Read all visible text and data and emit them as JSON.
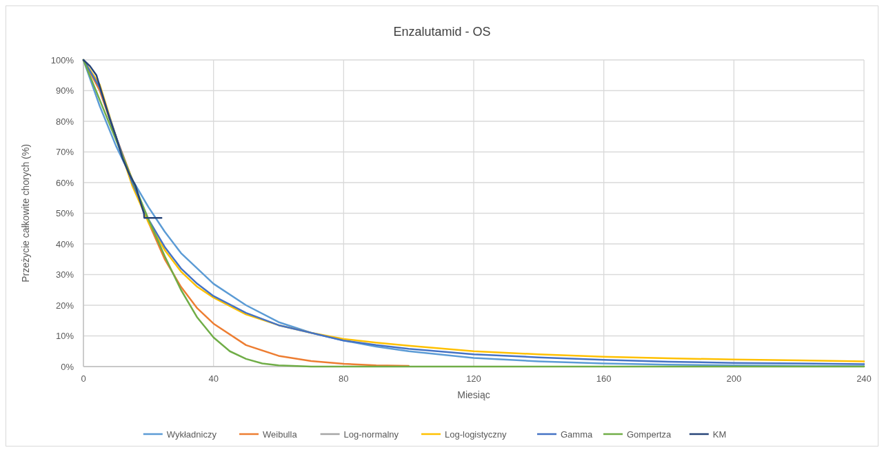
{
  "chart_data": {
    "type": "line",
    "title": "Enzalutamid - OS",
    "xlabel": "Miesiąc",
    "ylabel": "Przeżycie całkowite chorych (%)",
    "x": [
      0,
      5,
      10,
      15,
      20,
      25,
      30,
      35,
      40,
      50,
      60,
      70,
      80,
      90,
      100,
      120,
      140,
      160,
      180,
      200,
      220,
      240
    ],
    "xlim": [
      0,
      240
    ],
    "xticks": [
      0,
      40,
      80,
      120,
      160,
      200,
      240
    ],
    "ylim": [
      0,
      100
    ],
    "yticks": [
      {
        "value": 0,
        "label": "0%"
      },
      {
        "value": 10,
        "label": "10%"
      },
      {
        "value": 20,
        "label": "20%"
      },
      {
        "value": 30,
        "label": "30%"
      },
      {
        "value": 40,
        "label": "40%"
      },
      {
        "value": 50,
        "label": "50%"
      },
      {
        "value": 60,
        "label": "60%"
      },
      {
        "value": 70,
        "label": "70%"
      },
      {
        "value": 80,
        "label": "80%"
      },
      {
        "value": 90,
        "label": "90%"
      },
      {
        "value": 100,
        "label": "100%"
      }
    ],
    "grid": true,
    "legend": "bottom",
    "marker": "none",
    "line_style": "solid",
    "series": [
      {
        "name": "Wykładniczy",
        "color": "#5b9bd5",
        "values": [
          100,
          85,
          72,
          61,
          52,
          44,
          37,
          32,
          27,
          20,
          14.5,
          11,
          8.5,
          6.5,
          5,
          2.8,
          1.7,
          1,
          0.6,
          0.4,
          0.2,
          0.1
        ]
      },
      {
        "name": "Weibulla",
        "color": "#ed7d31",
        "values": [
          100,
          90,
          75,
          61,
          47,
          35,
          26,
          19,
          14,
          7,
          3.5,
          1.8,
          0.9,
          0.4,
          0.2,
          null,
          null,
          null,
          null,
          null,
          null,
          null
        ]
      },
      {
        "name": "Log-normalny",
        "color": "#a5a5a5",
        "values": [
          null,
          null,
          null,
          null,
          null,
          null,
          null,
          null,
          null,
          null,
          null,
          null,
          null,
          null,
          null,
          null,
          null,
          null,
          null,
          null,
          null,
          null
        ]
      },
      {
        "name": "Log-logistyczny",
        "color": "#ffc000",
        "values": [
          100,
          92,
          75,
          59,
          47,
          38,
          31,
          26,
          22.5,
          17,
          13.5,
          11,
          9,
          7.8,
          6.8,
          5,
          4,
          3.2,
          2.7,
          2.3,
          2,
          1.7
        ]
      },
      {
        "name": "Gamma",
        "color": "#4472c4",
        "values": [
          100,
          91,
          75,
          60,
          48,
          39,
          32,
          27,
          23,
          17.5,
          13.5,
          11,
          8.5,
          7,
          5.8,
          4,
          3,
          2.2,
          1.6,
          1.2,
          1,
          0.8
        ]
      },
      {
        "name": "Gompertza",
        "color": "#70ad47",
        "x": [
          0,
          5,
          10,
          15,
          20,
          25,
          30,
          35,
          40,
          45,
          50,
          55,
          60,
          70,
          80,
          120,
          160,
          200,
          240
        ],
        "values": [
          100,
          87,
          74,
          61,
          48,
          36,
          25,
          16,
          9.5,
          5,
          2.5,
          1,
          0.4,
          0,
          0,
          0,
          0,
          0,
          0
        ]
      },
      {
        "name": "KM",
        "color": "#264478",
        "x": [
          0,
          2,
          4,
          6,
          8,
          10,
          12,
          14,
          16,
          18,
          18.6,
          18.7,
          24
        ],
        "values": [
          100,
          98,
          95,
          88,
          81,
          75,
          68,
          63,
          59,
          52,
          50,
          48.5,
          48.5
        ]
      }
    ]
  }
}
